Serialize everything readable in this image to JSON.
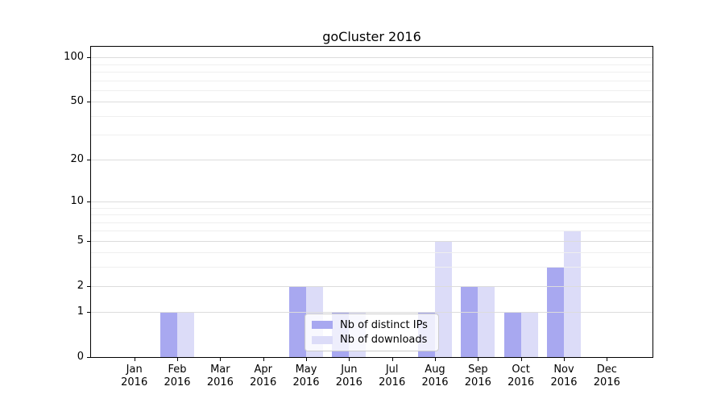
{
  "title": "goCluster 2016",
  "chart_data": {
    "type": "bar",
    "title": "goCluster 2016",
    "categories": [
      "Jan 2016",
      "Feb 2016",
      "Mar 2016",
      "Apr 2016",
      "May 2016",
      "Jun 2016",
      "Jul 2016",
      "Aug 2016",
      "Sep 2016",
      "Oct 2016",
      "Nov 2016",
      "Dec 2016"
    ],
    "series": [
      {
        "name": "Nb of distinct IPs",
        "color": "#a8a8f0",
        "values": [
          0,
          1,
          0,
          0,
          2,
          1,
          0,
          1,
          2,
          1,
          3,
          0
        ]
      },
      {
        "name": "Nb of downloads",
        "color": "#dcdcf8",
        "values": [
          0,
          1,
          0,
          0,
          2,
          1,
          0,
          5,
          2,
          1,
          6,
          0
        ]
      }
    ],
    "xlabel": "",
    "ylabel": "",
    "yscale": "log1p",
    "yticks": [
      0,
      1,
      2,
      5,
      10,
      20,
      50,
      100
    ],
    "minor_yticks": [
      3,
      4,
      6,
      7,
      8,
      9,
      30,
      40,
      60,
      70,
      80,
      90
    ],
    "ylim": [
      0,
      120
    ],
    "grid": true,
    "legend_position": "lower center"
  }
}
